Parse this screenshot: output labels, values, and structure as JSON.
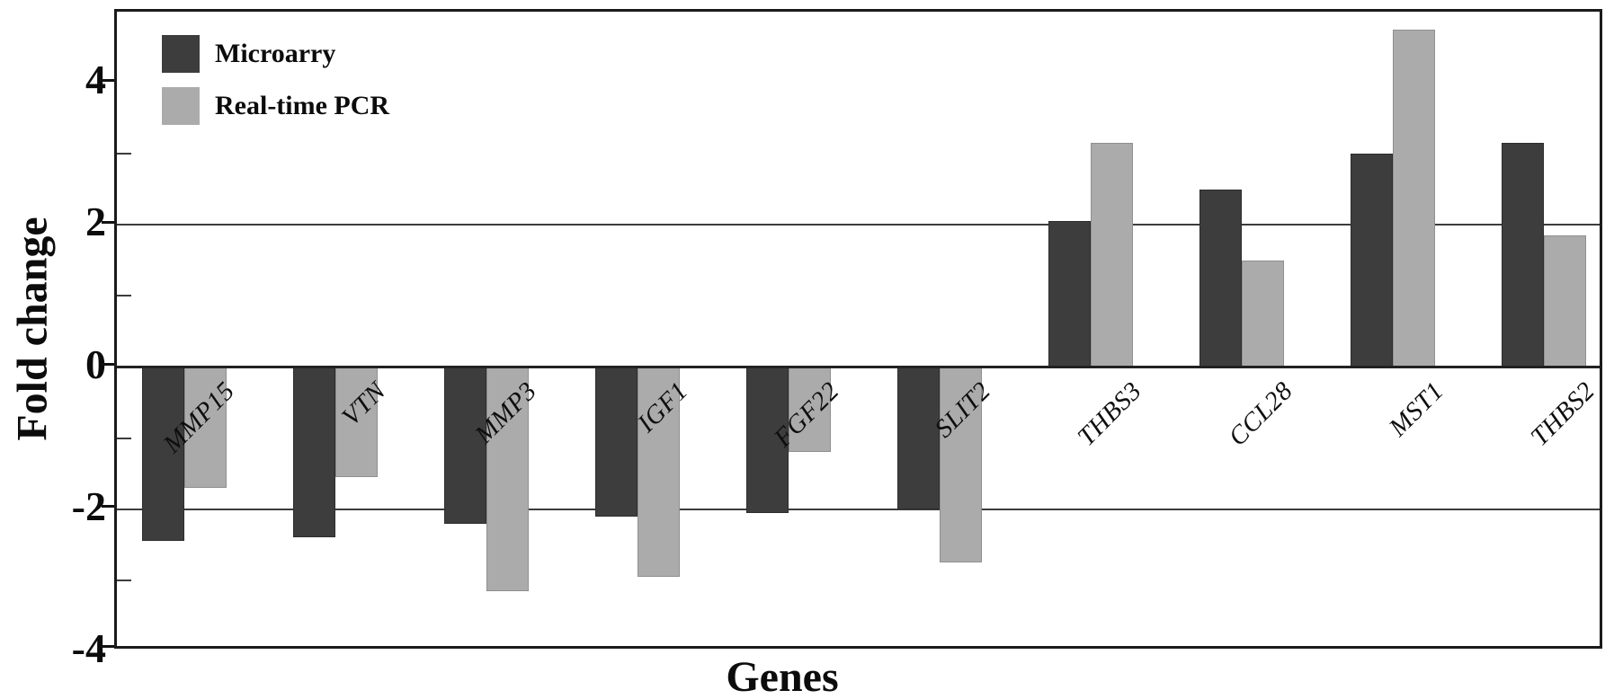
{
  "figure": {
    "background": "#ffffff",
    "frame_color": "#1b1b1b"
  },
  "chart_data": {
    "type": "bar",
    "title": "",
    "xlabel": "Genes",
    "ylabel": "Fold change",
    "ylim": [
      -4,
      5
    ],
    "yticks_major": [
      4,
      2,
      0,
      -2,
      -4
    ],
    "ytick_labels": [
      "4",
      "2",
      "0",
      "-2",
      "-4"
    ],
    "yticks_minor": [
      3,
      1,
      -1,
      -3
    ],
    "gridlines_y": [
      2,
      -2
    ],
    "zero_line_y": 0,
    "grid": "horizontal lines at 2, 0, -2 only",
    "legend_position": "top-left inside plot",
    "categories": [
      "MMP15",
      "VTN",
      "MMP3",
      "IGF1",
      "FGF22",
      "SLIT2",
      "THBS3",
      "CCL28",
      "MST1",
      "THBS2"
    ],
    "series": [
      {
        "name": "Microarry",
        "color": "#3d3d3d",
        "values": [
          -2.45,
          -2.4,
          -2.2,
          -2.1,
          -2.05,
          -2.0,
          2.05,
          2.5,
          3.0,
          3.15
        ]
      },
      {
        "name": "Real-time PCR",
        "color": "#ababab",
        "values": [
          -1.7,
          -1.55,
          -3.15,
          -2.95,
          -1.2,
          -2.75,
          3.15,
          1.5,
          4.75,
          1.85
        ]
      }
    ]
  },
  "legend": {
    "items": [
      {
        "label": "Microarry",
        "color": "#3d3d3d"
      },
      {
        "label": "Real-time PCR",
        "color": "#ababab"
      }
    ]
  }
}
